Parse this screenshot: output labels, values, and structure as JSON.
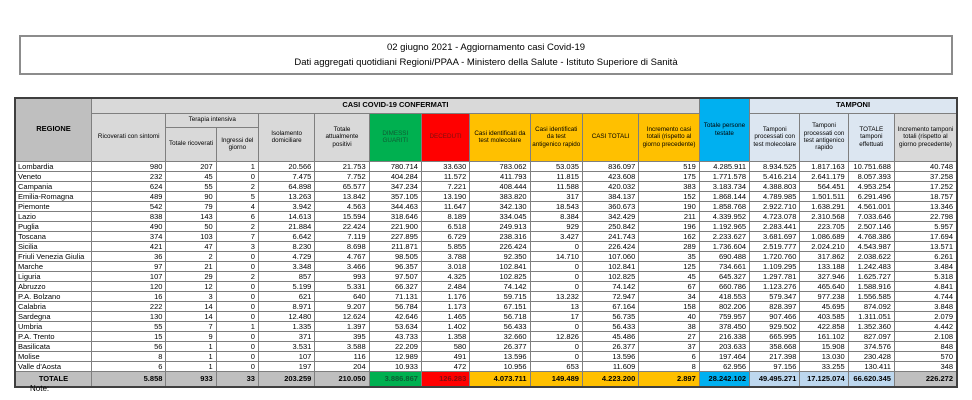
{
  "document": {
    "title_line1": "02 giugno 2021 - Aggiornamento casi Covid-19",
    "title_line2": "Dati aggregati quotidiani Regioni/PPAA - Ministero della Salute - Istituto Superiore di Sanità",
    "note_label": "Note:"
  },
  "colors": {
    "header_gray": "#D9D9D9",
    "region_gray": "#BFBFBF",
    "dimessi_green": "#00B050",
    "deceduti_red": "#FF0000",
    "casi_yellow": "#FFC000",
    "testate_cyan": "#00B0F0",
    "tamponi_header_blue": "#DCE6F1",
    "tamponi_total_blue": "#BDD7EE"
  },
  "table": {
    "group_headers": {
      "casi": "CASI COVID-19 CONFERMATI",
      "tamponi": "TAMPONI",
      "terapia_intensiva": "Terapia intensiva"
    },
    "columns": {
      "regione": "REGIONE",
      "ricoverati": "Ricoverati con sintomi",
      "ti_totale": "Totale ricoverati",
      "ti_ingressi": "Ingressi del giorno",
      "isolamento": "Isolamento domiciliare",
      "attualmente": "Totale attualmente positivi",
      "dimessi": "DIMESSI GUARITI",
      "deceduti": "DECEDUTI",
      "casi_mol": "Casi identificati da test molecolare",
      "casi_ant": "Casi identificati da test antigenico rapido",
      "casi_tot": "CASI TOTALI",
      "incr_casi": "Incremento casi totali (rispetto al giorno precedente)",
      "testate": "Totale persone testate",
      "tamp_mol": "Tamponi processati con test molecolare",
      "tamp_ant": "Tamponi processati con test antigenico rapido",
      "tamp_tot": "TOTALE tamponi effettuati",
      "incr_tamp": "Incremento tamponi totali (rispetto al giorno precedente)"
    },
    "rows": [
      {
        "region": "Lombardia",
        "values": [
          "980",
          "207",
          "1",
          "20.566",
          "21.753",
          "780.714",
          "33.630",
          "783.062",
          "53.035",
          "836.097",
          "519",
          "4.285.911",
          "8.934.525",
          "1.817.163",
          "10.751.688",
          "40.748"
        ]
      },
      {
        "region": "Veneto",
        "values": [
          "232",
          "45",
          "0",
          "7.475",
          "7.752",
          "404.284",
          "11.572",
          "411.793",
          "11.815",
          "423.608",
          "175",
          "1.771.578",
          "5.416.214",
          "2.641.179",
          "8.057.393",
          "37.258"
        ]
      },
      {
        "region": "Campania",
        "values": [
          "624",
          "55",
          "2",
          "64.898",
          "65.577",
          "347.234",
          "7.221",
          "408.444",
          "11.588",
          "420.032",
          "383",
          "3.183.734",
          "4.388.803",
          "564.451",
          "4.953.254",
          "17.252"
        ]
      },
      {
        "region": "Emilia-Romagna",
        "values": [
          "489",
          "90",
          "5",
          "13.263",
          "13.842",
          "357.105",
          "13.190",
          "383.820",
          "317",
          "384.137",
          "152",
          "1.868.144",
          "4.789.985",
          "1.501.511",
          "6.291.496",
          "18.757"
        ]
      },
      {
        "region": "Piemonte",
        "values": [
          "542",
          "79",
          "4",
          "3.942",
          "4.563",
          "344.463",
          "11.647",
          "342.130",
          "18.543",
          "360.673",
          "190",
          "1.858.768",
          "2.922.710",
          "1.638.291",
          "4.561.001",
          "13.346"
        ]
      },
      {
        "region": "Lazio",
        "values": [
          "838",
          "143",
          "6",
          "14.613",
          "15.594",
          "318.646",
          "8.189",
          "334.045",
          "8.384",
          "342.429",
          "211",
          "4.339.952",
          "4.723.078",
          "2.310.568",
          "7.033.646",
          "22.798"
        ]
      },
      {
        "region": "Puglia",
        "values": [
          "490",
          "50",
          "2",
          "21.884",
          "22.424",
          "221.900",
          "6.518",
          "249.913",
          "929",
          "250.842",
          "196",
          "1.192.965",
          "2.283.441",
          "223.705",
          "2.507.146",
          "5.957"
        ]
      },
      {
        "region": "Toscana",
        "values": [
          "374",
          "103",
          "7",
          "6.642",
          "7.119",
          "227.895",
          "6.729",
          "238.316",
          "3.427",
          "241.743",
          "162",
          "2.233.627",
          "3.681.697",
          "1.086.689",
          "4.768.386",
          "17.694"
        ]
      },
      {
        "region": "Sicilia",
        "values": [
          "421",
          "47",
          "3",
          "8.230",
          "8.698",
          "211.871",
          "5.855",
          "226.424",
          "0",
          "226.424",
          "289",
          "1.736.604",
          "2.519.777",
          "2.024.210",
          "4.543.987",
          "13.571"
        ]
      },
      {
        "region": "Friuli Venezia Giulia",
        "values": [
          "36",
          "2",
          "0",
          "4.729",
          "4.767",
          "98.505",
          "3.788",
          "92.350",
          "14.710",
          "107.060",
          "35",
          "690.488",
          "1.720.760",
          "317.862",
          "2.038.622",
          "6.261"
        ]
      },
      {
        "region": "Marche",
        "values": [
          "97",
          "21",
          "0",
          "3.348",
          "3.466",
          "96.357",
          "3.018",
          "102.841",
          "0",
          "102.841",
          "125",
          "734.661",
          "1.109.295",
          "133.188",
          "1.242.483",
          "3.484"
        ]
      },
      {
        "region": "Liguria",
        "values": [
          "107",
          "29",
          "2",
          "857",
          "993",
          "97.507",
          "4.325",
          "102.825",
          "0",
          "102.825",
          "45",
          "645.327",
          "1.297.781",
          "327.946",
          "1.625.727",
          "5.318"
        ]
      },
      {
        "region": "Abruzzo",
        "values": [
          "120",
          "12",
          "0",
          "5.199",
          "5.331",
          "66.327",
          "2.484",
          "74.142",
          "0",
          "74.142",
          "67",
          "660.786",
          "1.123.276",
          "465.640",
          "1.588.916",
          "4.841"
        ]
      },
      {
        "region": "P.A. Bolzano",
        "values": [
          "16",
          "3",
          "0",
          "621",
          "640",
          "71.131",
          "1.176",
          "59.715",
          "13.232",
          "72.947",
          "34",
          "418.553",
          "579.347",
          "977.238",
          "1.556.585",
          "4.744"
        ]
      },
      {
        "region": "Calabria",
        "values": [
          "222",
          "14",
          "0",
          "8.971",
          "9.207",
          "56.784",
          "1.173",
          "67.151",
          "13",
          "67.164",
          "158",
          "802.206",
          "828.397",
          "45.695",
          "874.092",
          "3.848"
        ]
      },
      {
        "region": "Sardegna",
        "values": [
          "130",
          "14",
          "0",
          "12.480",
          "12.624",
          "42.646",
          "1.465",
          "56.718",
          "17",
          "56.735",
          "40",
          "759.957",
          "907.466",
          "403.585",
          "1.311.051",
          "2.079"
        ]
      },
      {
        "region": "Umbria",
        "values": [
          "55",
          "7",
          "1",
          "1.335",
          "1.397",
          "53.634",
          "1.402",
          "56.433",
          "0",
          "56.433",
          "38",
          "378.450",
          "929.502",
          "422.858",
          "1.352.360",
          "4.442"
        ]
      },
      {
        "region": "P.A. Trento",
        "values": [
          "15",
          "9",
          "0",
          "371",
          "395",
          "43.733",
          "1.358",
          "32.660",
          "12.826",
          "45.486",
          "27",
          "216.338",
          "665.995",
          "161.102",
          "827.097",
          "2.108"
        ]
      },
      {
        "region": "Basilicata",
        "values": [
          "56",
          "1",
          "0",
          "3.531",
          "3.588",
          "22.209",
          "580",
          "26.377",
          "0",
          "26.377",
          "37",
          "203.633",
          "358.668",
          "15.908",
          "374.576",
          "848"
        ]
      },
      {
        "region": "Molise",
        "values": [
          "8",
          "1",
          "0",
          "107",
          "116",
          "12.989",
          "491",
          "13.596",
          "0",
          "13.596",
          "6",
          "197.464",
          "217.398",
          "13.030",
          "230.428",
          "570"
        ]
      },
      {
        "region": "Valle d'Aosta",
        "values": [
          "6",
          "1",
          "0",
          "197",
          "204",
          "10.933",
          "472",
          "10.956",
          "653",
          "11.609",
          "8",
          "62.956",
          "97.156",
          "33.255",
          "130.411",
          "348"
        ]
      }
    ],
    "total_row": {
      "region": "TOTALE",
      "values": [
        "5.858",
        "933",
        "33",
        "203.259",
        "210.050",
        "3.886.867",
        "126.283",
        "4.073.711",
        "149.489",
        "4.223.200",
        "2.897",
        "28.242.102",
        "49.495.271",
        "17.125.074",
        "66.620.345",
        "226.272"
      ]
    }
  }
}
